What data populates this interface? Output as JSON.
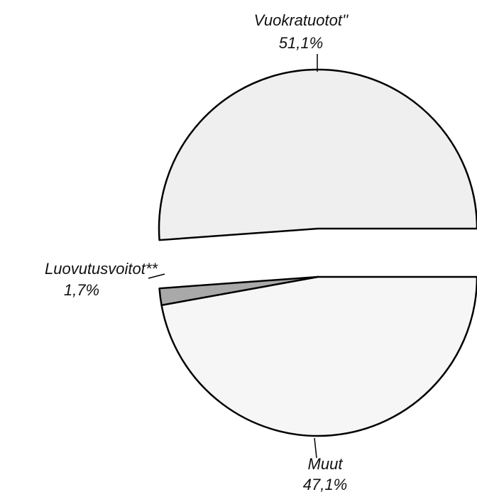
{
  "chart_data": {
    "type": "pie",
    "categories": [
      "Vuokratuotot''",
      "Luovutusvoitot**",
      "Muut"
    ],
    "values": [
      51.1,
      1.7,
      47.1
    ],
    "value_labels": [
      "51,1%",
      "1,7%",
      "47,1%"
    ],
    "colors": [
      "#efefef",
      "#a9a9a9",
      "#f6f6f6"
    ]
  }
}
